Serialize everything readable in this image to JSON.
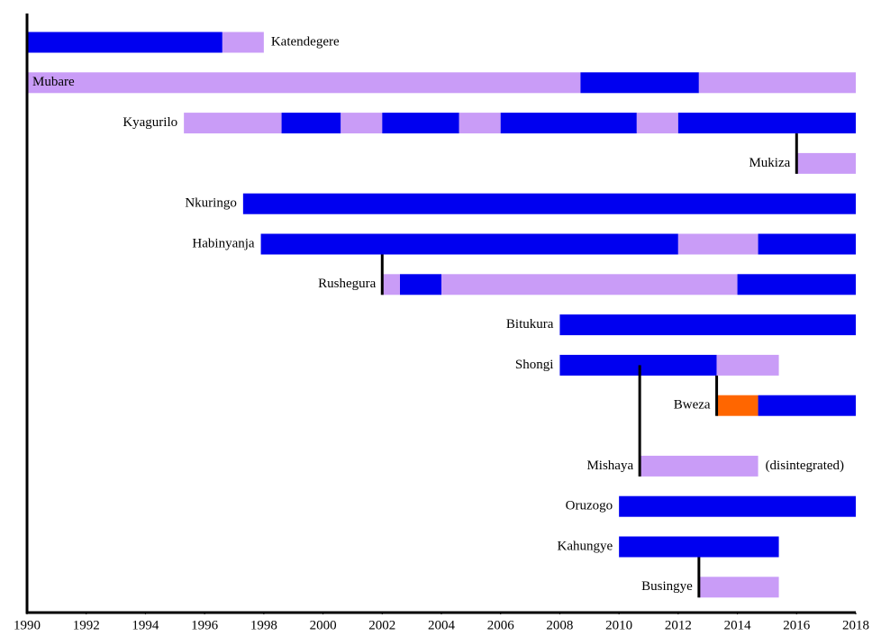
{
  "chart_data": {
    "type": "timeline",
    "xlim": [
      1990,
      2018
    ],
    "xticks": [
      1990,
      1992,
      1994,
      1996,
      1998,
      2000,
      2002,
      2004,
      2006,
      2008,
      2010,
      2012,
      2014,
      2016,
      2018
    ],
    "groups": [
      {
        "name": "Katendegere",
        "label_position": "right",
        "segments": [
          {
            "start": 1990,
            "end": 1996.6,
            "color": "#0000f0"
          },
          {
            "start": 1996.6,
            "end": 1998,
            "color": "#c99cf7"
          }
        ]
      },
      {
        "name": "Mubare",
        "label_position": "inside",
        "segments": [
          {
            "start": 1990,
            "end": 2008.7,
            "color": "#c99cf7"
          },
          {
            "start": 2008.7,
            "end": 2012.7,
            "color": "#0000f0"
          },
          {
            "start": 2012.7,
            "end": 2018,
            "color": "#c99cf7"
          }
        ]
      },
      {
        "name": "Kyagurilo",
        "segments": [
          {
            "start": 1995.3,
            "end": 1998.6,
            "color": "#c99cf7"
          },
          {
            "start": 1998.6,
            "end": 2000.6,
            "color": "#0000f0"
          },
          {
            "start": 2000.6,
            "end": 2002,
            "color": "#c99cf7"
          },
          {
            "start": 2002,
            "end": 2004.6,
            "color": "#0000f0"
          },
          {
            "start": 2004.6,
            "end": 2006,
            "color": "#c99cf7"
          },
          {
            "start": 2006,
            "end": 2010.6,
            "color": "#0000f0"
          },
          {
            "start": 2010.6,
            "end": 2012,
            "color": "#c99cf7"
          },
          {
            "start": 2012,
            "end": 2018,
            "color": "#0000f0"
          }
        ]
      },
      {
        "name": "Mukiza",
        "split": 2016,
        "segments": [
          {
            "start": 2016,
            "end": 2018,
            "color": "#c99cf7"
          }
        ]
      },
      {
        "name": "Nkuringo",
        "segments": [
          {
            "start": 1997.3,
            "end": 2018,
            "color": "#0000f0"
          }
        ]
      },
      {
        "name": "Habinyanja",
        "segments": [
          {
            "start": 1997.9,
            "end": 2012,
            "color": "#0000f0"
          },
          {
            "start": 2012,
            "end": 2014.7,
            "color": "#c99cf7"
          },
          {
            "start": 2014.7,
            "end": 2018,
            "color": "#0000f0"
          }
        ]
      },
      {
        "name": "Rushegura",
        "split": 2002,
        "segments": [
          {
            "start": 2002,
            "end": 2002.6,
            "color": "#c99cf7"
          },
          {
            "start": 2002.6,
            "end": 2004,
            "color": "#0000f0"
          },
          {
            "start": 2004,
            "end": 2014,
            "color": "#c99cf7"
          },
          {
            "start": 2014,
            "end": 2018,
            "color": "#0000f0"
          }
        ]
      },
      {
        "name": "Bitukura",
        "segments": [
          {
            "start": 2008,
            "end": 2018,
            "color": "#0000f0"
          }
        ]
      },
      {
        "name": "Shongi",
        "segments": [
          {
            "start": 2008,
            "end": 2013.3,
            "color": "#0000f0"
          },
          {
            "start": 2013.3,
            "end": 2015.4,
            "color": "#c99cf7"
          }
        ]
      },
      {
        "name": "Bweza",
        "split": 2013.3,
        "segments": [
          {
            "start": 2013.3,
            "end": 2014.7,
            "color": "#ff6600"
          },
          {
            "start": 2014.7,
            "end": 2018,
            "color": "#0000f0"
          }
        ]
      },
      {
        "name": "Mishaya",
        "split": 2010.7,
        "note": "(disintegrated)",
        "segments": [
          {
            "start": 2010.7,
            "end": 2014.7,
            "color": "#c99cf7"
          }
        ]
      },
      {
        "name": "Oruzogo",
        "segments": [
          {
            "start": 2010,
            "end": 2018,
            "color": "#0000f0"
          }
        ]
      },
      {
        "name": "Kahungye",
        "segments": [
          {
            "start": 2010,
            "end": 2015.4,
            "color": "#0000f0"
          }
        ]
      },
      {
        "name": "Busingye",
        "split": 2012.7,
        "segments": [
          {
            "start": 2012.7,
            "end": 2015.4,
            "color": "#c99cf7"
          }
        ]
      }
    ]
  }
}
